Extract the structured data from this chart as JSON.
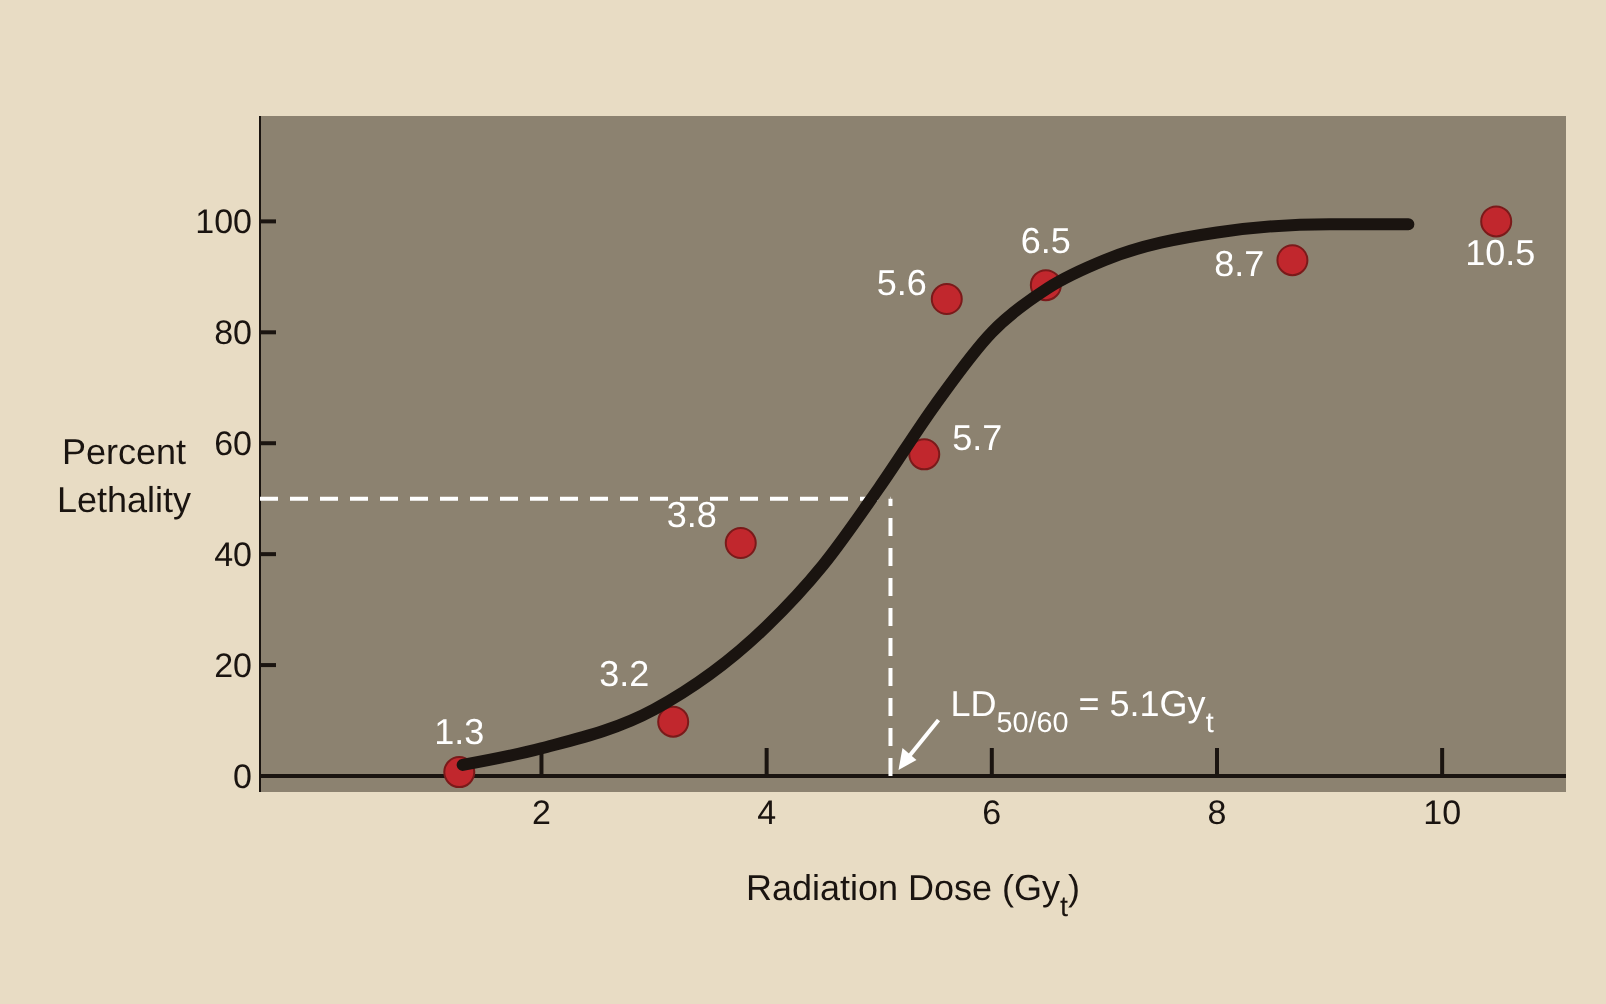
{
  "chart_data": {
    "type": "scatter",
    "xlabel": "Radiation Dose (Gy$_{t}$)",
    "ylabel": "Percent\nLethality",
    "xlim": [
      -0.5,
      11.1
    ],
    "ylim": [
      0,
      119
    ],
    "xticks": [
      2,
      4,
      6,
      8,
      10
    ],
    "yticks": [
      0,
      20,
      40,
      60,
      80,
      100
    ],
    "grid": false,
    "series": [
      {
        "color": "#c1272d",
        "marker": "circle",
        "x": [
          1.27,
          3.17,
          3.77,
          5.6,
          6.48,
          5.4,
          8.67,
          10.48
        ],
        "values": [
          0.7,
          9.8,
          42,
          86,
          88.5,
          58,
          93,
          100
        ]
      },
      {
        "type": "line",
        "color": "#1a1410",
        "marker": "none",
        "line_style": "solid",
        "x": [
          1.3,
          2,
          3,
          4,
          4.5,
          5,
          5.5,
          6,
          6.5,
          7,
          8,
          9,
          9.7
        ],
        "values": [
          2,
          5,
          12,
          27,
          38,
          52,
          67,
          80,
          88,
          93,
          98,
          99.5,
          99.5
        ]
      }
    ],
    "ref_lines": [
      {
        "axis": "y",
        "value": 50,
        "color": "#ffffff",
        "line_style": "dashed"
      },
      {
        "axis": "x",
        "value": 5.1,
        "color": "#ffffff",
        "line_style": "dashed"
      }
    ],
    "annotations": [
      {
        "text": "LD$_{50/60}$ = 5.1Gy$_{t}$",
        "x": 5.1,
        "y": 0
      },
      {
        "text": "1.3",
        "x": 1.27,
        "y": 0.7
      },
      {
        "text": "3.2",
        "x": 3.17,
        "y": 9.8
      },
      {
        "text": "3.8",
        "x": 3.77,
        "y": 42
      },
      {
        "text": "5.6",
        "x": 5.6,
        "y": 86
      },
      {
        "text": "6.5",
        "x": 6.48,
        "y": 88.5
      },
      {
        "text": "5.7",
        "x": 5.4,
        "y": 58
      },
      {
        "text": "8.7",
        "x": 8.67,
        "y": 93
      },
      {
        "text": "10.5",
        "x": 10.48,
        "y": 100
      }
    ]
  }
}
